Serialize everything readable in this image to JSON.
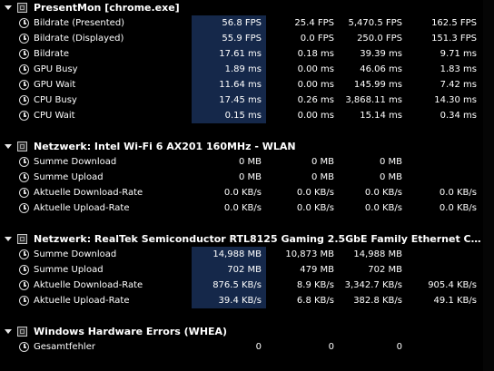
{
  "groups": [
    {
      "title": "PresentMon [chrome.exe]",
      "rows": [
        {
          "label": "Bildrate (Presented)",
          "v1": "56.8 FPS",
          "v2": "25.4 FPS",
          "v3": "5,470.5 FPS",
          "v4": "162.5 FPS"
        },
        {
          "label": "Bildrate (Displayed)",
          "v1": "55.9 FPS",
          "v2": "0.0 FPS",
          "v3": "250.0 FPS",
          "v4": "151.3 FPS"
        },
        {
          "label": "Bildrate",
          "v1": "17.61 ms",
          "v2": "0.18 ms",
          "v3": "39.39 ms",
          "v4": "9.71 ms"
        },
        {
          "label": "GPU Busy",
          "v1": "1.89 ms",
          "v2": "0.00 ms",
          "v3": "46.06 ms",
          "v4": "1.83 ms"
        },
        {
          "label": "GPU Wait",
          "v1": "11.64 ms",
          "v2": "0.00 ms",
          "v3": "145.99 ms",
          "v4": "7.42 ms"
        },
        {
          "label": "CPU Busy",
          "v1": "17.45 ms",
          "v2": "0.26 ms",
          "v3": "3,868.11 ms",
          "v4": "14.30 ms"
        },
        {
          "label": "CPU Wait",
          "v1": "0.15 ms",
          "v2": "0.00 ms",
          "v3": "15.14 ms",
          "v4": "0.34 ms"
        }
      ]
    },
    {
      "title": "Netzwerk: Intel Wi-Fi 6 AX201 160MHz - WLAN",
      "rows": [
        {
          "label": "Summe Download",
          "v1": "0 MB",
          "v2": "0 MB",
          "v3": "0 MB",
          "v4": ""
        },
        {
          "label": "Summe Upload",
          "v1": "0 MB",
          "v2": "0 MB",
          "v3": "0 MB",
          "v4": ""
        },
        {
          "label": "Aktuelle Download-Rate",
          "v1": "0.0 KB/s",
          "v2": "0.0 KB/s",
          "v3": "0.0 KB/s",
          "v4": "0.0 KB/s"
        },
        {
          "label": "Aktuelle Upload-Rate",
          "v1": "0.0 KB/s",
          "v2": "0.0 KB/s",
          "v3": "0.0 KB/s",
          "v4": "0.0 KB/s"
        }
      ]
    },
    {
      "title": "Netzwerk: RealTek Semiconductor RTL8125 Gaming 2.5GbE Family Ethernet Controller...",
      "rows": [
        {
          "label": "Summe Download",
          "v1": "14,988 MB",
          "v2": "10,873 MB",
          "v3": "14,988 MB",
          "v4": ""
        },
        {
          "label": "Summe Upload",
          "v1": "702 MB",
          "v2": "479 MB",
          "v3": "702 MB",
          "v4": ""
        },
        {
          "label": "Aktuelle Download-Rate",
          "v1": "876.5 KB/s",
          "v2": "8.9 KB/s",
          "v3": "3,342.7 KB/s",
          "v4": "905.4 KB/s"
        },
        {
          "label": "Aktuelle Upload-Rate",
          "v1": "39.4 KB/s",
          "v2": "6.8 KB/s",
          "v3": "382.8 KB/s",
          "v4": "49.1 KB/s"
        }
      ]
    },
    {
      "title": "Windows Hardware Errors (WHEA)",
      "rows": [
        {
          "label": "Gesamtfehler",
          "v1": "0",
          "v2": "0",
          "v3": "0",
          "v4": ""
        }
      ]
    }
  ]
}
